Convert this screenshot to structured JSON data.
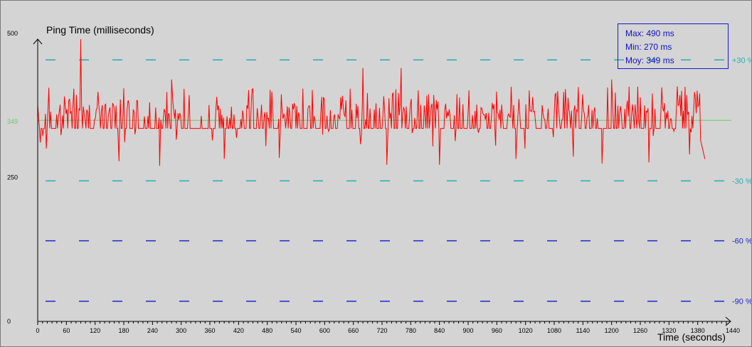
{
  "chart_data": {
    "type": "line",
    "title": "Ping Time (milliseconds)",
    "xlabel": "Time (seconds)",
    "ylabel": "Ping Time (milliseconds)",
    "xlim": [
      0,
      1440
    ],
    "ylim": [
      0,
      500
    ],
    "x_ticks": [
      "0",
      "60",
      "120",
      "180",
      "240",
      "300",
      "360",
      "420",
      "480",
      "540",
      "600",
      "660",
      "720",
      "780",
      "840",
      "900",
      "960",
      "1020",
      "1080",
      "1140",
      "1200",
      "1260",
      "1320",
      "1380",
      "1440"
    ],
    "y_tick_labels": [
      "0",
      "250",
      "500"
    ],
    "average_label": "349",
    "stats": {
      "max": "Max: 490 ms",
      "min": "Min: 270 ms",
      "avg": "Moy: 349 ms"
    },
    "reference_lines": [
      {
        "label": "+30 %",
        "value": 454,
        "color": "#22b0b0"
      },
      {
        "label": "-30 %",
        "value": 244,
        "color": "#22b0b0"
      },
      {
        "label": "-60 %",
        "value": 140,
        "color": "#2222cc"
      },
      {
        "label": "-90 %",
        "value": 35,
        "color": "#2222cc"
      }
    ],
    "average_line": {
      "value": 349,
      "color": "#66cc66"
    },
    "series": [
      {
        "color": "#ff0000",
        "sample_interval_s": 1.8,
        "baseline_ms": 335,
        "min_ms": 270,
        "max_ms": 490,
        "peak_points": [
          [
            90,
            490
          ],
          [
            280,
            420
          ],
          [
            680,
            440
          ],
          [
            760,
            440
          ],
          [
            1200,
            420
          ]
        ],
        "dip_points": [
          [
            18,
            300
          ],
          [
            170,
            278
          ],
          [
            255,
            270
          ],
          [
            390,
            282
          ],
          [
            505,
            284
          ],
          [
            730,
            272
          ],
          [
            840,
            272
          ],
          [
            1000,
            282
          ],
          [
            1120,
            286
          ],
          [
            1180,
            274
          ],
          [
            1278,
            276
          ],
          [
            1363,
            290
          ],
          [
            1395,
            282
          ]
        ]
      }
    ]
  }
}
